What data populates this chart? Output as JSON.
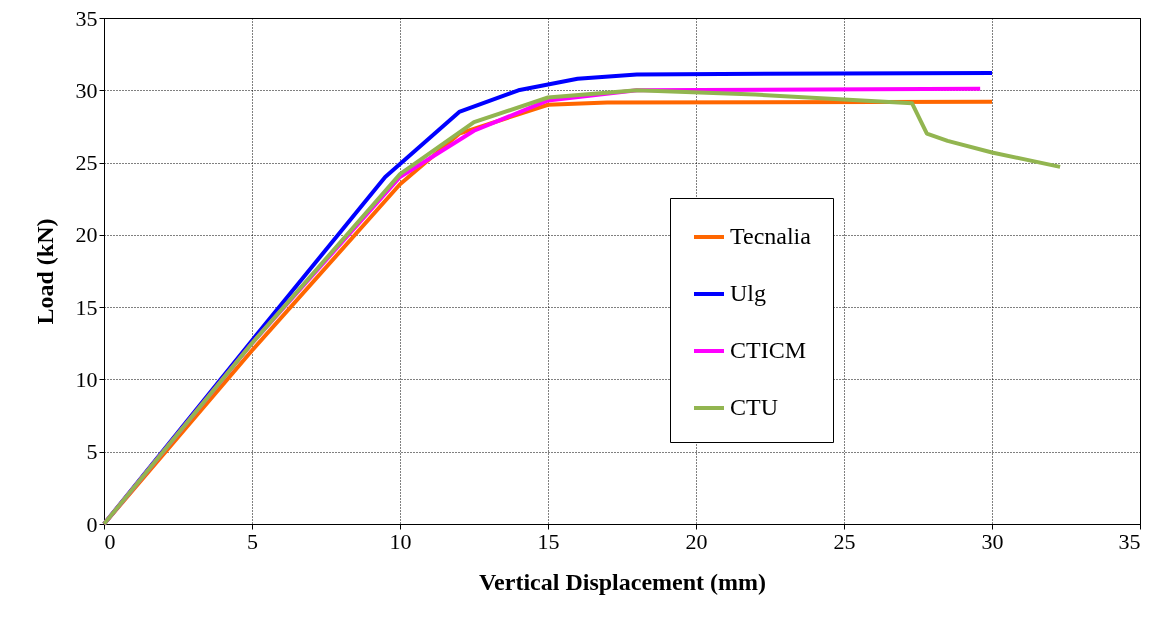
{
  "chart_data": {
    "type": "line",
    "xlabel": "Vertical Displacement (mm)",
    "ylabel": "Load (kN)",
    "xlim": [
      0,
      35
    ],
    "xticks": [
      0,
      5,
      10,
      15,
      20,
      25,
      30,
      35
    ],
    "ylim": [
      0,
      35
    ],
    "yticks": [
      0,
      5,
      10,
      15,
      20,
      25,
      30,
      35
    ],
    "grid": true,
    "legend": "right",
    "marker": "none",
    "line_style": "solid",
    "series": [
      {
        "name": "Tecnalia",
        "color": "#ff6600",
        "x": [
          0,
          5,
          10,
          12,
          15,
          17,
          30
        ],
        "values": [
          0,
          12,
          23.5,
          27,
          29,
          29.15,
          29.2
        ]
      },
      {
        "name": "Ulg",
        "color": "#0000ff",
        "x": [
          0,
          5,
          9.5,
          12,
          14,
          16,
          18,
          30
        ],
        "values": [
          0,
          12.7,
          24,
          28.5,
          30,
          30.8,
          31.1,
          31.2
        ]
      },
      {
        "name": "CTICM",
        "color": "#ff00ff",
        "x": [
          0,
          5,
          10,
          12.5,
          15,
          18,
          29.6
        ],
        "values": [
          0,
          12.5,
          24,
          27.2,
          29.3,
          30,
          30.1
        ]
      },
      {
        "name": "CTU",
        "color": "#92b550",
        "x": [
          0,
          5,
          10,
          12.5,
          15,
          18,
          22,
          27.3,
          27.8,
          28.5,
          30,
          32.3
        ],
        "values": [
          0,
          12.5,
          24.2,
          27.8,
          29.5,
          30,
          29.7,
          29.1,
          27,
          26.5,
          25.7,
          24.7
        ]
      }
    ]
  }
}
